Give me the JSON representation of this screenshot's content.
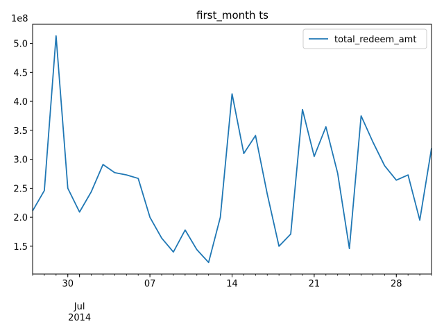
{
  "chart_data": {
    "type": "line",
    "title": "first_month ts",
    "xlabel": "",
    "ylabel": "",
    "y_offset_label": "1e8",
    "y_scale": 100000000,
    "x": [
      "2014-06-27",
      "2014-06-28",
      "2014-06-29",
      "2014-06-30",
      "2014-07-01",
      "2014-07-02",
      "2014-07-03",
      "2014-07-04",
      "2014-07-05",
      "2014-07-06",
      "2014-07-07",
      "2014-07-08",
      "2014-07-09",
      "2014-07-10",
      "2014-07-11",
      "2014-07-12",
      "2014-07-13",
      "2014-07-14",
      "2014-07-15",
      "2014-07-16",
      "2014-07-17",
      "2014-07-18",
      "2014-07-19",
      "2014-07-20",
      "2014-07-21",
      "2014-07-22",
      "2014-07-23",
      "2014-07-24",
      "2014-07-25",
      "2014-07-26",
      "2014-07-27",
      "2014-07-28",
      "2014-07-29",
      "2014-07-30",
      "2014-07-31"
    ],
    "series": [
      {
        "name": "total_redeem_amt",
        "color": "#1f77b4",
        "values": [
          2.11,
          2.46,
          5.13,
          2.5,
          2.09,
          2.44,
          2.91,
          2.77,
          2.73,
          2.67,
          2.0,
          1.64,
          1.4,
          1.78,
          1.44,
          1.22,
          2.0,
          4.13,
          3.1,
          3.41,
          2.4,
          1.5,
          1.71,
          3.86,
          3.05,
          3.56,
          2.76,
          1.46,
          3.75,
          3.3,
          2.89,
          2.64,
          2.73,
          1.95,
          3.19
        ]
      }
    ],
    "xlim": [
      "2014-06-27",
      "2014-07-31"
    ],
    "ylim": [
      1.02,
      5.33
    ],
    "yticks": [
      1.5,
      2.0,
      2.5,
      3.0,
      3.5,
      4.0,
      4.5,
      5.0
    ],
    "ytick_labels": [
      "1.5",
      "2.0",
      "2.5",
      "3.0",
      "3.5",
      "4.0",
      "4.5",
      "5.0"
    ],
    "xticks_major": [
      "2014-06-30",
      "2014-07-07",
      "2014-07-14",
      "2014-07-21",
      "2014-07-28"
    ],
    "xtick_labels": [
      "30",
      "07",
      "14",
      "21",
      "28"
    ],
    "x_secondary_label": [
      "Jul",
      "2014"
    ],
    "grid": false,
    "legend_position": "top-right"
  }
}
